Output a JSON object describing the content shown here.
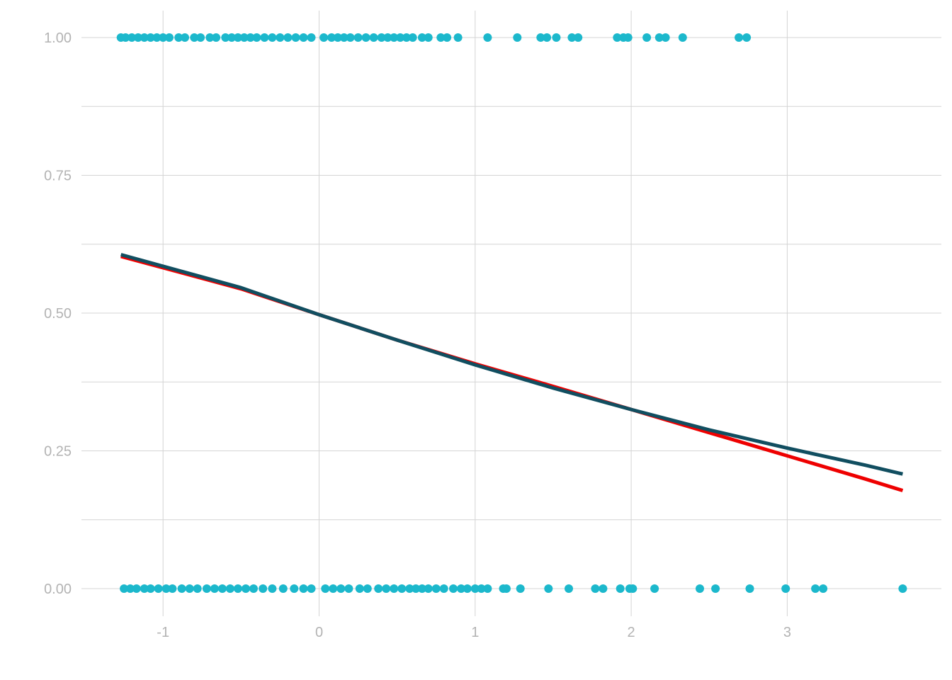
{
  "chart_data": {
    "type": "scatter",
    "title": "",
    "xlabel": "",
    "ylabel": "",
    "xlim": [
      -1.5,
      4.0
    ],
    "ylim": [
      -0.05,
      1.05
    ],
    "grid": true,
    "legend": "none",
    "x_ticks": [
      {
        "value": -1,
        "label": "-1"
      },
      {
        "value": 0,
        "label": "0"
      },
      {
        "value": 1,
        "label": "1"
      },
      {
        "value": 2,
        "label": "2"
      },
      {
        "value": 3,
        "label": "3"
      }
    ],
    "y_ticks": [
      {
        "value": 0,
        "label": "0.00"
      },
      {
        "value": 0.25,
        "label": "0.25"
      },
      {
        "value": 0.5,
        "label": "0.50"
      },
      {
        "value": 0.75,
        "label": "0.75"
      },
      {
        "value": 1,
        "label": "1.00"
      }
    ],
    "colors": {
      "points": "#1cb8cc",
      "red_line": "#ee0000",
      "dark_line": "#114e60",
      "grid": "#d4d4d4",
      "tick_text": "#b3b3b3"
    },
    "points": [
      {
        "x": -1.27,
        "y": 1
      },
      {
        "x": -1.24,
        "y": 1
      },
      {
        "x": -1.2,
        "y": 1
      },
      {
        "x": -1.16,
        "y": 1
      },
      {
        "x": -1.12,
        "y": 1
      },
      {
        "x": -1.08,
        "y": 1
      },
      {
        "x": -1.04,
        "y": 1
      },
      {
        "x": -1.0,
        "y": 1
      },
      {
        "x": -0.96,
        "y": 1
      },
      {
        "x": -0.9,
        "y": 1
      },
      {
        "x": -0.86,
        "y": 1
      },
      {
        "x": -0.8,
        "y": 1
      },
      {
        "x": -0.76,
        "y": 1
      },
      {
        "x": -0.7,
        "y": 1
      },
      {
        "x": -0.66,
        "y": 1
      },
      {
        "x": -0.6,
        "y": 1
      },
      {
        "x": -0.56,
        "y": 1
      },
      {
        "x": -0.52,
        "y": 1
      },
      {
        "x": -0.48,
        "y": 1
      },
      {
        "x": -0.44,
        "y": 1
      },
      {
        "x": -0.4,
        "y": 1
      },
      {
        "x": -0.35,
        "y": 1
      },
      {
        "x": -0.3,
        "y": 1
      },
      {
        "x": -0.25,
        "y": 1
      },
      {
        "x": -0.2,
        "y": 1
      },
      {
        "x": -0.15,
        "y": 1
      },
      {
        "x": -0.1,
        "y": 1
      },
      {
        "x": -0.05,
        "y": 1
      },
      {
        "x": 0.03,
        "y": 1
      },
      {
        "x": 0.08,
        "y": 1
      },
      {
        "x": 0.12,
        "y": 1
      },
      {
        "x": 0.16,
        "y": 1
      },
      {
        "x": 0.2,
        "y": 1
      },
      {
        "x": 0.25,
        "y": 1
      },
      {
        "x": 0.3,
        "y": 1
      },
      {
        "x": 0.35,
        "y": 1
      },
      {
        "x": 0.4,
        "y": 1
      },
      {
        "x": 0.44,
        "y": 1
      },
      {
        "x": 0.48,
        "y": 1
      },
      {
        "x": 0.52,
        "y": 1
      },
      {
        "x": 0.56,
        "y": 1
      },
      {
        "x": 0.6,
        "y": 1
      },
      {
        "x": 0.66,
        "y": 1
      },
      {
        "x": 0.7,
        "y": 1
      },
      {
        "x": 0.78,
        "y": 1
      },
      {
        "x": 0.82,
        "y": 1
      },
      {
        "x": 0.89,
        "y": 1
      },
      {
        "x": 1.08,
        "y": 1
      },
      {
        "x": 1.27,
        "y": 1
      },
      {
        "x": 1.42,
        "y": 1
      },
      {
        "x": 1.46,
        "y": 1
      },
      {
        "x": 1.52,
        "y": 1
      },
      {
        "x": 1.62,
        "y": 1
      },
      {
        "x": 1.66,
        "y": 1
      },
      {
        "x": 1.91,
        "y": 1
      },
      {
        "x": 1.95,
        "y": 1
      },
      {
        "x": 1.98,
        "y": 1
      },
      {
        "x": 2.1,
        "y": 1
      },
      {
        "x": 2.18,
        "y": 1
      },
      {
        "x": 2.22,
        "y": 1
      },
      {
        "x": 2.33,
        "y": 1
      },
      {
        "x": 2.69,
        "y": 1
      },
      {
        "x": 2.74,
        "y": 1
      },
      {
        "x": -1.25,
        "y": 0
      },
      {
        "x": -1.21,
        "y": 0
      },
      {
        "x": -1.17,
        "y": 0
      },
      {
        "x": -1.12,
        "y": 0
      },
      {
        "x": -1.08,
        "y": 0
      },
      {
        "x": -1.03,
        "y": 0
      },
      {
        "x": -0.98,
        "y": 0
      },
      {
        "x": -0.94,
        "y": 0
      },
      {
        "x": -0.88,
        "y": 0
      },
      {
        "x": -0.83,
        "y": 0
      },
      {
        "x": -0.78,
        "y": 0
      },
      {
        "x": -0.72,
        "y": 0
      },
      {
        "x": -0.67,
        "y": 0
      },
      {
        "x": -0.62,
        "y": 0
      },
      {
        "x": -0.57,
        "y": 0
      },
      {
        "x": -0.52,
        "y": 0
      },
      {
        "x": -0.47,
        "y": 0
      },
      {
        "x": -0.42,
        "y": 0
      },
      {
        "x": -0.36,
        "y": 0
      },
      {
        "x": -0.3,
        "y": 0
      },
      {
        "x": -0.23,
        "y": 0
      },
      {
        "x": -0.16,
        "y": 0
      },
      {
        "x": -0.1,
        "y": 0
      },
      {
        "x": -0.05,
        "y": 0
      },
      {
        "x": 0.04,
        "y": 0
      },
      {
        "x": 0.09,
        "y": 0
      },
      {
        "x": 0.14,
        "y": 0
      },
      {
        "x": 0.19,
        "y": 0
      },
      {
        "x": 0.26,
        "y": 0
      },
      {
        "x": 0.31,
        "y": 0
      },
      {
        "x": 0.38,
        "y": 0
      },
      {
        "x": 0.43,
        "y": 0
      },
      {
        "x": 0.48,
        "y": 0
      },
      {
        "x": 0.53,
        "y": 0
      },
      {
        "x": 0.58,
        "y": 0
      },
      {
        "x": 0.62,
        "y": 0
      },
      {
        "x": 0.66,
        "y": 0
      },
      {
        "x": 0.7,
        "y": 0
      },
      {
        "x": 0.75,
        "y": 0
      },
      {
        "x": 0.8,
        "y": 0
      },
      {
        "x": 0.86,
        "y": 0
      },
      {
        "x": 0.91,
        "y": 0
      },
      {
        "x": 0.95,
        "y": 0
      },
      {
        "x": 1.0,
        "y": 0
      },
      {
        "x": 1.04,
        "y": 0
      },
      {
        "x": 1.08,
        "y": 0
      },
      {
        "x": 1.18,
        "y": 0
      },
      {
        "x": 1.2,
        "y": 0
      },
      {
        "x": 1.29,
        "y": 0
      },
      {
        "x": 1.47,
        "y": 0
      },
      {
        "x": 1.6,
        "y": 0
      },
      {
        "x": 1.77,
        "y": 0
      },
      {
        "x": 1.82,
        "y": 0
      },
      {
        "x": 1.93,
        "y": 0
      },
      {
        "x": 1.99,
        "y": 0
      },
      {
        "x": 2.01,
        "y": 0
      },
      {
        "x": 2.15,
        "y": 0
      },
      {
        "x": 2.44,
        "y": 0
      },
      {
        "x": 2.54,
        "y": 0
      },
      {
        "x": 2.76,
        "y": 0
      },
      {
        "x": 2.99,
        "y": 0
      },
      {
        "x": 3.18,
        "y": 0
      },
      {
        "x": 3.23,
        "y": 0
      },
      {
        "x": 3.74,
        "y": 0
      }
    ],
    "series": [
      {
        "x": [
          -1.27,
          -0.5,
          0.0,
          0.5,
          1.0,
          1.5,
          2.0,
          2.5,
          3.0,
          3.5,
          3.74
        ],
        "y": [
          0.603,
          0.544,
          0.497,
          0.451,
          0.408,
          0.367,
          0.325,
          0.283,
          0.241,
          0.199,
          0.178
        ],
        "color": "#ee0000"
      },
      {
        "x": [
          -1.27,
          -0.5,
          0.0,
          0.5,
          1.0,
          1.5,
          2.0,
          2.5,
          3.0,
          3.5,
          3.74
        ],
        "y": [
          0.606,
          0.546,
          0.497,
          0.451,
          0.406,
          0.364,
          0.325,
          0.288,
          0.255,
          0.224,
          0.208
        ],
        "color": "#114e60"
      }
    ]
  }
}
